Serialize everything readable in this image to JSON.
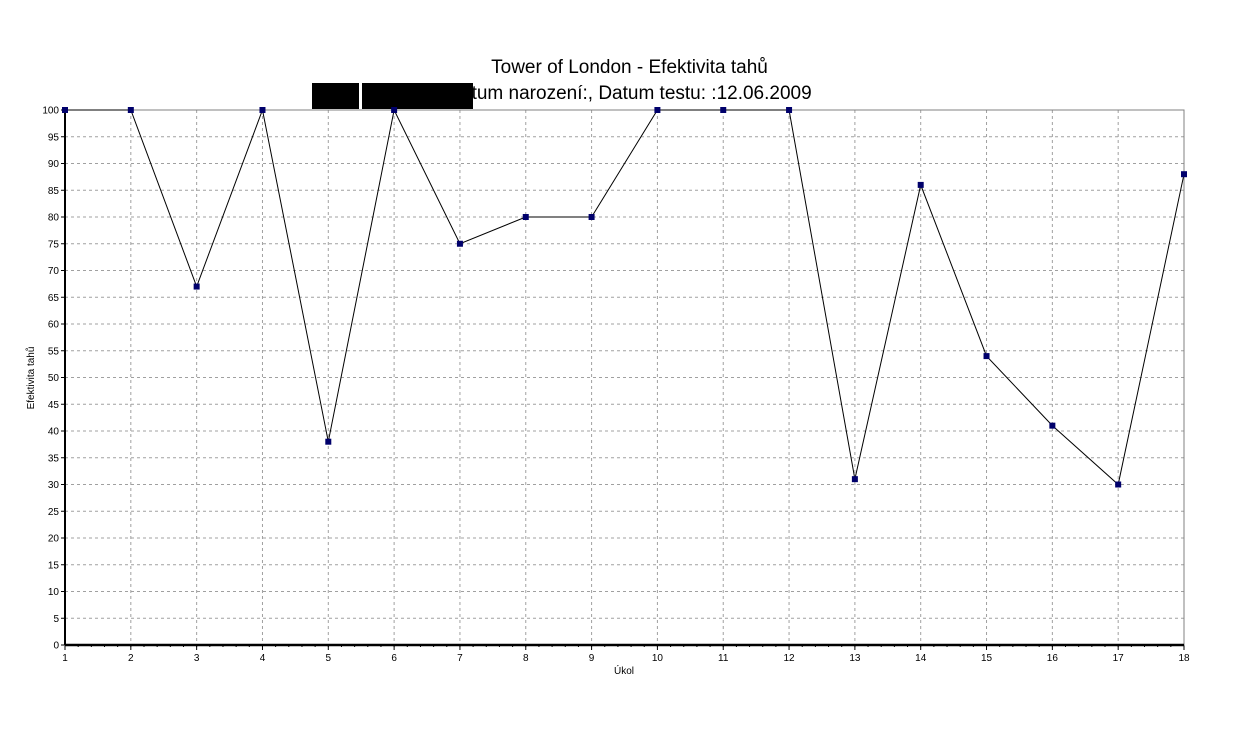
{
  "chart_data": {
    "type": "line",
    "title": "Tower of London - Efektivita tahů",
    "subtitle": "Datum narození:, Datum testu: :12.06.2009",
    "xlabel": "Úkol",
    "ylabel": "Efektivita tahů",
    "x": [
      1,
      2,
      3,
      4,
      5,
      6,
      7,
      8,
      9,
      10,
      11,
      12,
      13,
      14,
      15,
      16,
      17,
      18
    ],
    "xlim": [
      1,
      18
    ],
    "ylim": [
      0,
      100
    ],
    "y_ticks": [
      0,
      5,
      10,
      15,
      20,
      25,
      30,
      35,
      40,
      45,
      50,
      55,
      60,
      65,
      70,
      75,
      80,
      85,
      90,
      95,
      100
    ],
    "series": [
      {
        "values": [
          100,
          100,
          67,
          100,
          38,
          100,
          75,
          80,
          80,
          100,
          100,
          100,
          31,
          86,
          54,
          41,
          30,
          88
        ]
      }
    ],
    "grid": true,
    "legend": "none",
    "colors": {
      "line": "#000000",
      "marker": "#00006b",
      "grid": "#a0a0a0",
      "axis": "#000000"
    }
  }
}
